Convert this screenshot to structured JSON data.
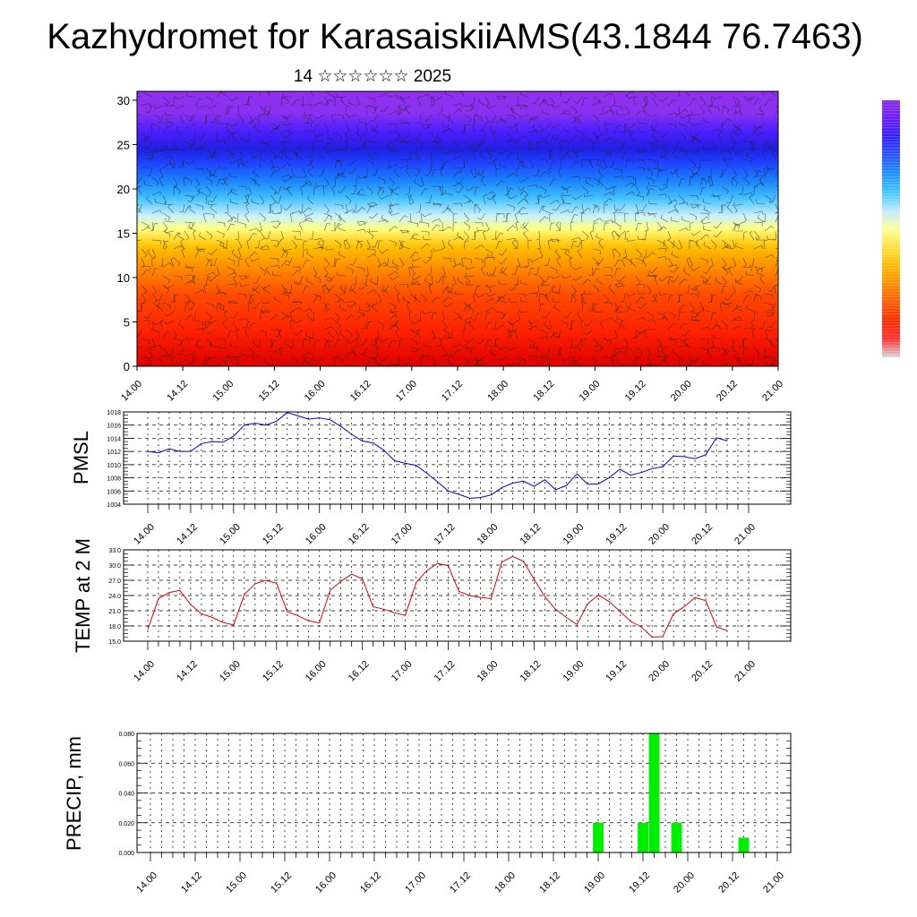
{
  "title": "Kazhydromet for KarasaiskiiAMS(43.1844 76.7463)",
  "subtitle": "14 ☆☆☆☆☆☆ 2025",
  "time_ticks": [
    "14.00",
    "14.12",
    "15.00",
    "15.12",
    "16.00",
    "16.12",
    "17.00",
    "17.12",
    "18.00",
    "18.12",
    "19.00",
    "19.12",
    "20.00",
    "20.12",
    "21.00"
  ],
  "chart_data": [
    {
      "type": "heatmap",
      "panel": "cross-section",
      "description_fields": [
        "color field with wind barbs"
      ],
      "y_ticks": [
        "0",
        "5",
        "10",
        "15",
        "20",
        "25",
        "30"
      ],
      "ylim": [
        0,
        31
      ],
      "xlim": [
        0,
        168
      ],
      "colorbar": {
        "position": "right",
        "stops": [
          "#d8d8d8",
          "#ff3030",
          "#ff2a00",
          "#ff5a00",
          "#ff8c00",
          "#ffbb00",
          "#ffe040",
          "#ffff99",
          "#bfe8ff",
          "#40c8ff",
          "#1e90ff",
          "#2a50ff",
          "#3020ff",
          "#6a1aff",
          "#8a2be2"
        ]
      },
      "bands": [
        {
          "y": 0,
          "color": "#dd0000"
        },
        {
          "y": 4,
          "color": "#ff2200"
        },
        {
          "y": 8,
          "color": "#ff4a00"
        },
        {
          "y": 11,
          "color": "#ff8a00"
        },
        {
          "y": 13.5,
          "color": "#ffc000"
        },
        {
          "y": 15.5,
          "color": "#ffff80"
        },
        {
          "y": 17,
          "color": "#c8f0ff"
        },
        {
          "y": 19,
          "color": "#40c0ff"
        },
        {
          "y": 21,
          "color": "#1a80ff"
        },
        {
          "y": 23,
          "color": "#2040ff"
        },
        {
          "y": 24.5,
          "color": "#2020e0"
        },
        {
          "y": 26.5,
          "color": "#4a20ff"
        },
        {
          "y": 28.5,
          "color": "#8a30f0"
        },
        {
          "y": 31,
          "color": "#9030f0"
        }
      ]
    },
    {
      "type": "line",
      "ylabel": "PMSL",
      "y_ticks": [
        "1004",
        "1006",
        "1008",
        "1010",
        "1012",
        "1014",
        "1016",
        "1018"
      ],
      "ylim": [
        1004,
        1018
      ],
      "xlim": [
        0,
        168
      ],
      "color": "#0000cc",
      "series": [
        {
          "x": [
            0,
            3,
            6,
            9,
            12,
            15,
            18,
            21,
            24,
            27,
            30,
            33,
            36,
            39,
            42,
            45,
            48,
            51,
            54,
            57,
            60,
            63,
            66,
            69,
            72,
            75,
            78,
            81,
            84,
            87,
            90,
            93,
            96,
            99,
            102,
            105,
            108,
            111,
            114,
            117,
            120,
            123,
            126,
            129,
            132,
            135,
            138,
            141,
            144,
            147,
            150,
            153,
            156,
            159,
            162
          ],
          "values": [
            1012,
            1011.8,
            1012.4,
            1012,
            1012,
            1013.2,
            1013.5,
            1013.4,
            1014.3,
            1016,
            1016.3,
            1016,
            1016.6,
            1017.9,
            1017.4,
            1016.9,
            1017.1,
            1016.8,
            1015.8,
            1014.6,
            1013.6,
            1013.3,
            1012.2,
            1010.6,
            1010.2,
            1009.9,
            1008.7,
            1007.4,
            1006,
            1005.5,
            1004.9,
            1005,
            1005.4,
            1006.5,
            1007.2,
            1007.5,
            1006.7,
            1007.7,
            1006.2,
            1006.8,
            1008.6,
            1007,
            1007.1,
            1008,
            1009.3,
            1008.4,
            1008.8,
            1009.4,
            1009.7,
            1011.3,
            1011.2,
            1010.9,
            1011.5,
            1014.1,
            1013.6
          ]
        }
      ]
    },
    {
      "type": "line",
      "ylabel": "TEMP at 2 M",
      "y_ticks": [
        "15.0",
        "18.0",
        "21.0",
        "24.0",
        "27.0",
        "30.0",
        "33.0"
      ],
      "ylim": [
        15,
        33
      ],
      "xlim": [
        0,
        168
      ],
      "color": "#dd0000",
      "series": [
        {
          "x": [
            0,
            3,
            6,
            9,
            12,
            15,
            18,
            21,
            24,
            27,
            30,
            33,
            36,
            39,
            42,
            45,
            48,
            51,
            54,
            57,
            60,
            63,
            66,
            69,
            72,
            75,
            78,
            81,
            84,
            87,
            90,
            93,
            96,
            99,
            102,
            105,
            108,
            111,
            114,
            117,
            120,
            123,
            126,
            129,
            132,
            135,
            138,
            141,
            144,
            147,
            150,
            153,
            156,
            159,
            162
          ],
          "values": [
            17.3,
            23.4,
            24.6,
            25,
            22.2,
            20.4,
            19.7,
            18.7,
            18.2,
            24.2,
            26.3,
            27,
            26.4,
            20.8,
            20,
            19,
            18.6,
            25,
            26.8,
            28.2,
            27.3,
            21.8,
            21.3,
            20.6,
            20.1,
            26.5,
            28.9,
            30.3,
            29.9,
            24.8,
            24,
            23.6,
            23.4,
            30.6,
            31.7,
            30.8,
            27.2,
            23.8,
            21.3,
            19.7,
            18.3,
            22.4,
            24.1,
            22.8,
            20.9,
            18.9,
            17.8,
            15.8,
            15.9,
            20.4,
            21.8,
            23.6,
            23,
            17.8,
            17.1
          ]
        }
      ]
    },
    {
      "type": "bar",
      "ylabel": "PRECIP, mm",
      "y_ticks": [
        "0.000",
        "0.020",
        "0.040",
        "0.060",
        "0.080"
      ],
      "ylim": [
        0,
        0.08
      ],
      "xlim": [
        0,
        168
      ],
      "color": "#00ee00",
      "x": [
        120,
        132,
        135,
        141,
        159
      ],
      "values": [
        0.02,
        0.02,
        0.08,
        0.02,
        0.01
      ]
    }
  ]
}
